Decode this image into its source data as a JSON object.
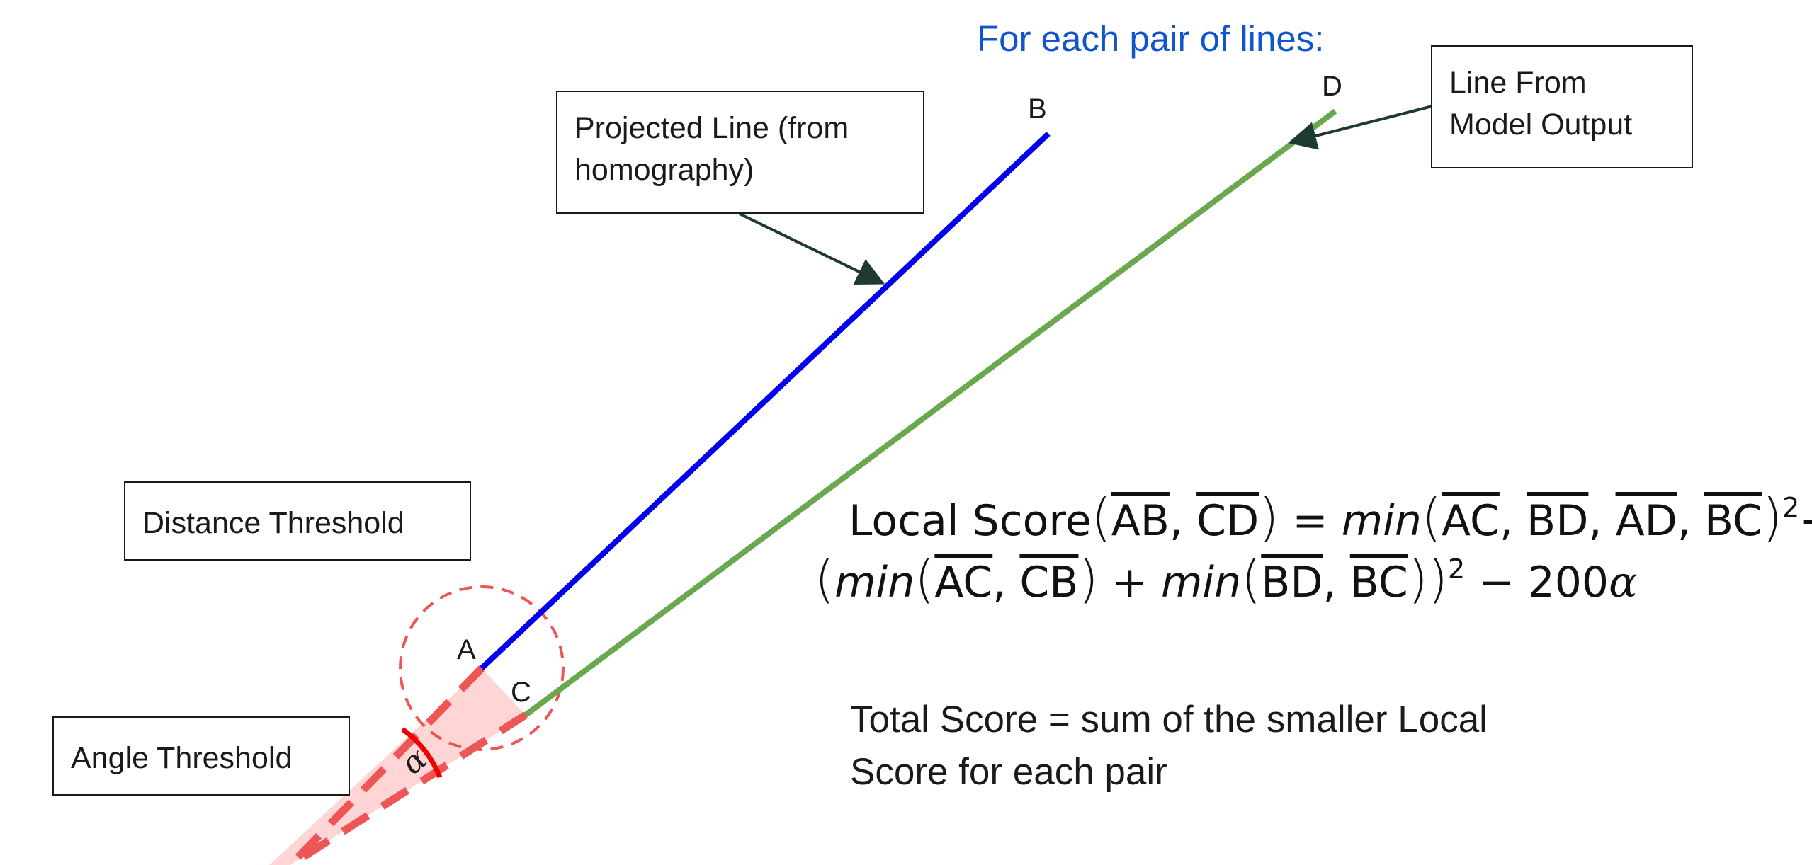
{
  "header": {
    "text": "For each pair of lines:",
    "color": "#1155cc"
  },
  "callouts": {
    "projected_line": "Projected Line (from homography)",
    "model_line": "Line From Model Output",
    "distance_threshold": "Distance Threshold",
    "angle_threshold": "Angle Threshold"
  },
  "points": {
    "a": "A",
    "b": "B",
    "c": "C",
    "d": "D"
  },
  "angle_symbol": "α",
  "formula": {
    "local_score_label": "Local Score",
    "seg_ab": "AB",
    "seg_cd": "CD",
    "seg_ac": "AC",
    "seg_bd": "BD",
    "seg_ad": "AD",
    "seg_bc": "BC",
    "seg_cb": "CB",
    "min_fn": "min",
    "exponent": "2",
    "constant": "200",
    "angle_var": "α"
  },
  "total_score": "Total Score = sum of the smaller Local Score for each pair",
  "colors": {
    "projected_line": "#0000ee",
    "model_line": "#6aa84f",
    "threshold": "#ee5555",
    "threshold_fill": "#ffd5d5",
    "angle_arc": "#ee0000",
    "arrow": "#1f3a2e"
  }
}
